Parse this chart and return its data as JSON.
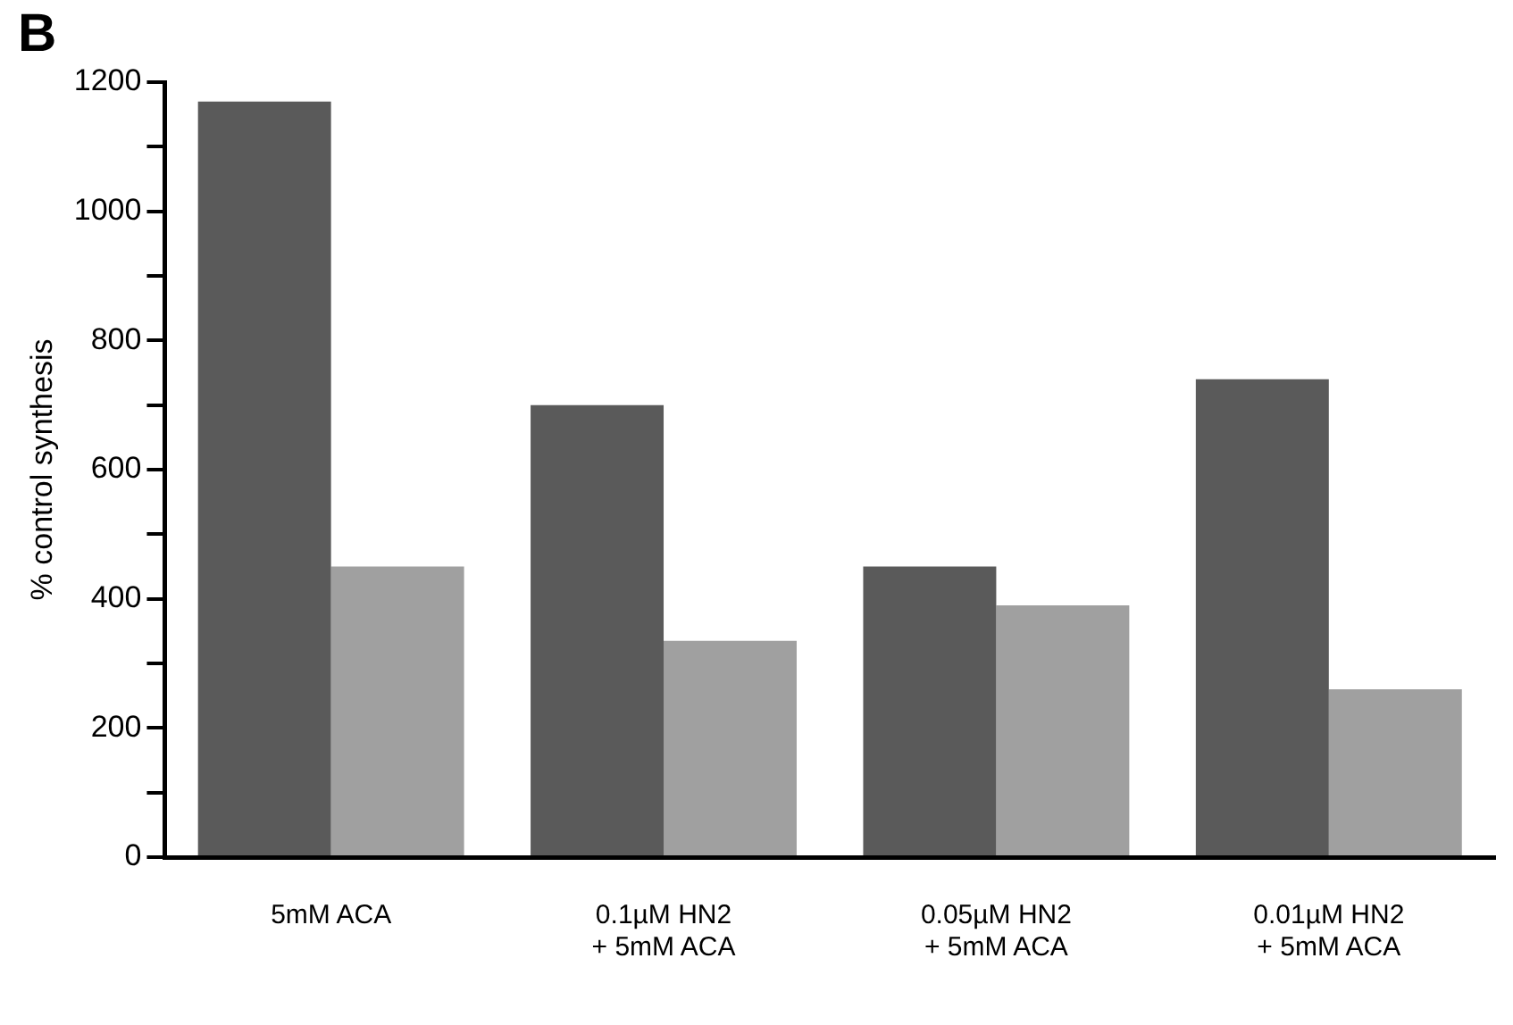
{
  "chart_data": {
    "type": "bar",
    "title": "B",
    "ylabel": "% control synthesis",
    "categories": [
      "5mM ACA",
      "0.1µM HN2\n+ 5mM ACA",
      "0.05µM HN2\n+ 5mM ACA",
      "0.01µM HN2\n+ 5mM ACA"
    ],
    "series": [
      {
        "color": "#5a5a5a",
        "values": [
          1170,
          700,
          450,
          740
        ]
      },
      {
        "color": "#a0a0a0",
        "values": [
          450,
          335,
          390,
          260
        ]
      }
    ],
    "ylim": [
      0,
      1200
    ],
    "yticks": [
      0,
      {
        "value": 100,
        "label": null
      },
      200,
      {
        "value": 300,
        "label": null
      },
      400,
      {
        "value": 500,
        "label": null
      },
      600,
      {
        "value": 700,
        "label": null
      },
      800,
      {
        "value": 900,
        "label": null
      },
      1000,
      {
        "value": 1100,
        "label": null
      },
      1200
    ],
    "grid": false,
    "legend": false
  }
}
